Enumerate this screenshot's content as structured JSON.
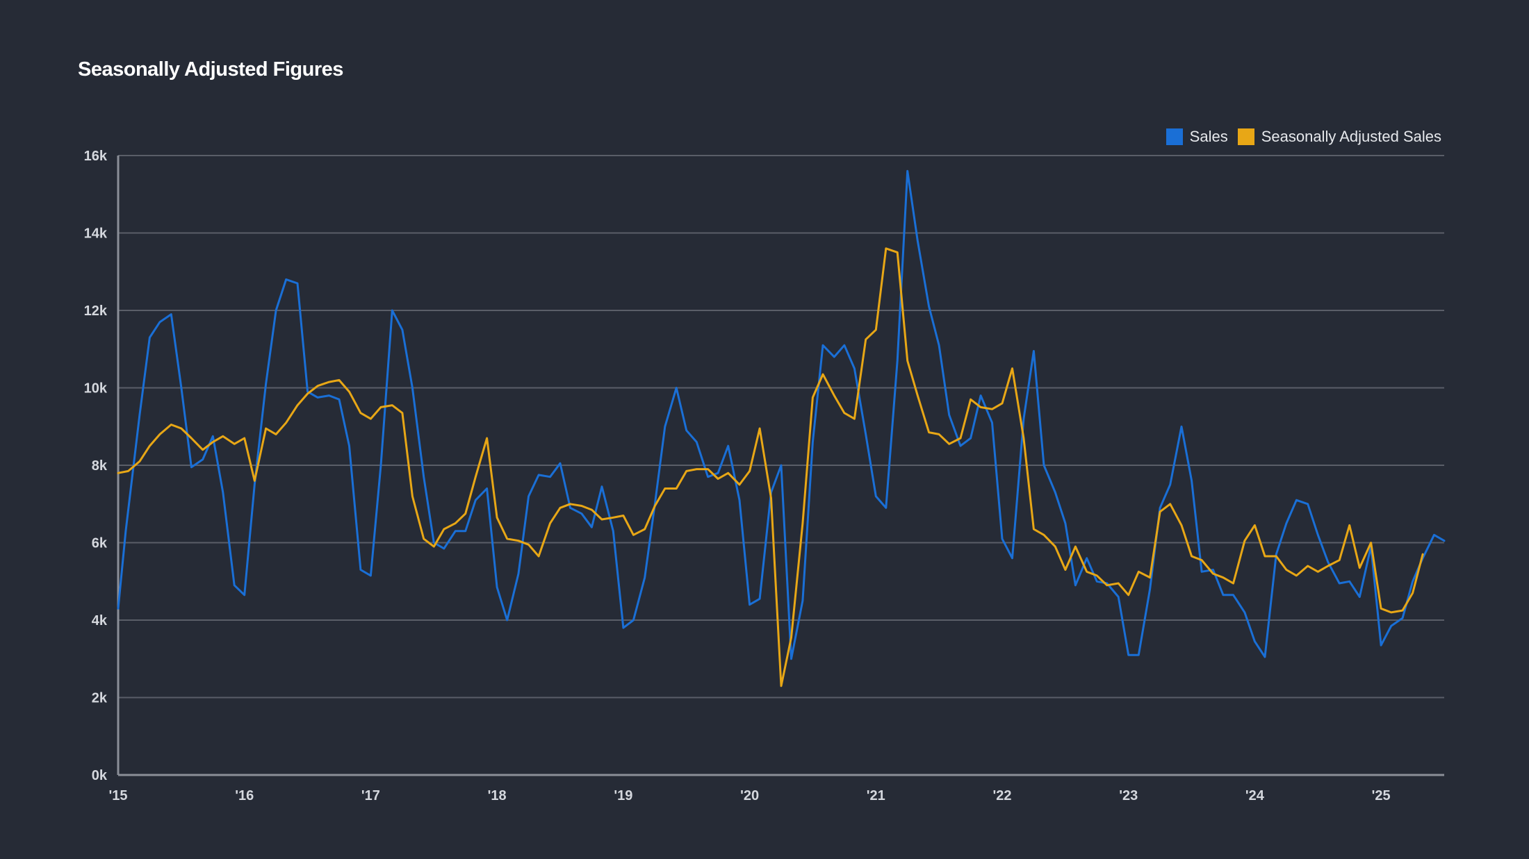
{
  "chart_data": {
    "type": "line",
    "title": "Seasonally Adjusted Figures",
    "ylim": [
      0,
      16000
    ],
    "x_range": [
      2015.0,
      2025.5
    ],
    "grid": true,
    "legend_placement": "top-right",
    "x_tick_labels": [
      {
        "value": 2015,
        "label": "'15"
      },
      {
        "value": 2016,
        "label": "'16"
      },
      {
        "value": 2017,
        "label": "'17"
      },
      {
        "value": 2018,
        "label": "'18"
      },
      {
        "value": 2019,
        "label": "'19"
      },
      {
        "value": 2020,
        "label": "'20"
      },
      {
        "value": 2021,
        "label": "'21"
      },
      {
        "value": 2022,
        "label": "'22"
      },
      {
        "value": 2023,
        "label": "'23"
      },
      {
        "value": 2024,
        "label": "'24"
      },
      {
        "value": 2025,
        "label": "'25"
      }
    ],
    "y_tick_labels": [
      {
        "value": 0,
        "label": "0k"
      },
      {
        "value": 2000,
        "label": "2k"
      },
      {
        "value": 4000,
        "label": "4k"
      },
      {
        "value": 6000,
        "label": "6k"
      },
      {
        "value": 8000,
        "label": "8k"
      },
      {
        "value": 10000,
        "label": "10k"
      },
      {
        "value": 12000,
        "label": "12k"
      },
      {
        "value": 14000,
        "label": "14k"
      },
      {
        "value": 16000,
        "label": "16k"
      }
    ],
    "series": [
      {
        "name": "Sales",
        "color": "#1a6fd6",
        "points": [
          [
            2015.0,
            4300
          ],
          [
            2015.06,
            6300
          ],
          [
            2015.17,
            9300
          ],
          [
            2015.25,
            11300
          ],
          [
            2015.33,
            11700
          ],
          [
            2015.42,
            11900
          ],
          [
            2015.5,
            10000
          ],
          [
            2015.58,
            7950
          ],
          [
            2015.67,
            8150
          ],
          [
            2015.75,
            8750
          ],
          [
            2015.83,
            7300
          ],
          [
            2015.92,
            4900
          ],
          [
            2016.0,
            4650
          ],
          [
            2016.08,
            7500
          ],
          [
            2016.17,
            10100
          ],
          [
            2016.25,
            12000
          ],
          [
            2016.33,
            12800
          ],
          [
            2016.42,
            12700
          ],
          [
            2016.5,
            9900
          ],
          [
            2016.58,
            9750
          ],
          [
            2016.67,
            9800
          ],
          [
            2016.75,
            9700
          ],
          [
            2016.83,
            8500
          ],
          [
            2016.92,
            5300
          ],
          [
            2017.0,
            5150
          ],
          [
            2017.08,
            8000
          ],
          [
            2017.17,
            12000
          ],
          [
            2017.25,
            11500
          ],
          [
            2017.33,
            10000
          ],
          [
            2017.42,
            7700
          ],
          [
            2017.5,
            6000
          ],
          [
            2017.58,
            5850
          ],
          [
            2017.67,
            6300
          ],
          [
            2017.75,
            6300
          ],
          [
            2017.83,
            7100
          ],
          [
            2017.92,
            7400
          ],
          [
            2018.0,
            4850
          ],
          [
            2018.08,
            4000
          ],
          [
            2018.17,
            5200
          ],
          [
            2018.25,
            7200
          ],
          [
            2018.33,
            7750
          ],
          [
            2018.42,
            7700
          ],
          [
            2018.5,
            8050
          ],
          [
            2018.58,
            6900
          ],
          [
            2018.67,
            6750
          ],
          [
            2018.75,
            6400
          ],
          [
            2018.83,
            7450
          ],
          [
            2018.92,
            6300
          ],
          [
            2019.0,
            3800
          ],
          [
            2019.08,
            4000
          ],
          [
            2019.17,
            5100
          ],
          [
            2019.25,
            7000
          ],
          [
            2019.33,
            9000
          ],
          [
            2019.42,
            10000
          ],
          [
            2019.5,
            8900
          ],
          [
            2019.58,
            8600
          ],
          [
            2019.67,
            7700
          ],
          [
            2019.75,
            7800
          ],
          [
            2019.83,
            8500
          ],
          [
            2019.92,
            7100
          ],
          [
            2020.0,
            4400
          ],
          [
            2020.08,
            4550
          ],
          [
            2020.17,
            7300
          ],
          [
            2020.25,
            8000
          ],
          [
            2020.33,
            3000
          ],
          [
            2020.42,
            4500
          ],
          [
            2020.5,
            8600
          ],
          [
            2020.58,
            11100
          ],
          [
            2020.67,
            10800
          ],
          [
            2020.75,
            11100
          ],
          [
            2020.83,
            10500
          ],
          [
            2020.92,
            8800
          ],
          [
            2021.0,
            7200
          ],
          [
            2021.08,
            6900
          ],
          [
            2021.17,
            10700
          ],
          [
            2021.25,
            15600
          ],
          [
            2021.33,
            13800
          ],
          [
            2021.42,
            12100
          ],
          [
            2021.5,
            11100
          ],
          [
            2021.58,
            9300
          ],
          [
            2021.67,
            8500
          ],
          [
            2021.75,
            8700
          ],
          [
            2021.83,
            9800
          ],
          [
            2021.92,
            9100
          ],
          [
            2022.0,
            6100
          ],
          [
            2022.08,
            5600
          ],
          [
            2022.17,
            9200
          ],
          [
            2022.25,
            10950
          ],
          [
            2022.33,
            8000
          ],
          [
            2022.42,
            7300
          ],
          [
            2022.5,
            6500
          ],
          [
            2022.58,
            4900
          ],
          [
            2022.67,
            5600
          ],
          [
            2022.75,
            5000
          ],
          [
            2022.83,
            4950
          ],
          [
            2022.92,
            4600
          ],
          [
            2023.0,
            3100
          ],
          [
            2023.08,
            3100
          ],
          [
            2023.17,
            4800
          ],
          [
            2023.25,
            6900
          ],
          [
            2023.33,
            7500
          ],
          [
            2023.42,
            9000
          ],
          [
            2023.5,
            7600
          ],
          [
            2023.58,
            5250
          ],
          [
            2023.67,
            5300
          ],
          [
            2023.75,
            4650
          ],
          [
            2023.83,
            4650
          ],
          [
            2023.92,
            4200
          ],
          [
            2024.0,
            3450
          ],
          [
            2024.08,
            3050
          ],
          [
            2024.17,
            5700
          ],
          [
            2024.25,
            6500
          ],
          [
            2024.33,
            7100
          ],
          [
            2024.42,
            7000
          ],
          [
            2024.5,
            6200
          ],
          [
            2024.58,
            5500
          ],
          [
            2024.67,
            4950
          ],
          [
            2024.75,
            5000
          ],
          [
            2024.83,
            4600
          ],
          [
            2024.92,
            5900
          ],
          [
            2025.0,
            3350
          ],
          [
            2025.08,
            3850
          ],
          [
            2025.17,
            4050
          ],
          [
            2025.25,
            5000
          ],
          [
            2025.33,
            5600
          ],
          [
            2025.42,
            6200
          ],
          [
            2025.5,
            6050
          ]
        ]
      },
      {
        "name": "Seasonally Adjusted Sales",
        "color": "#e8a716",
        "points": [
          [
            2015.0,
            7800
          ],
          [
            2015.08,
            7850
          ],
          [
            2015.17,
            8100
          ],
          [
            2015.25,
            8500
          ],
          [
            2015.33,
            8800
          ],
          [
            2015.42,
            9050
          ],
          [
            2015.5,
            8950
          ],
          [
            2015.58,
            8700
          ],
          [
            2015.67,
            8400
          ],
          [
            2015.75,
            8600
          ],
          [
            2015.83,
            8750
          ],
          [
            2015.92,
            8550
          ],
          [
            2016.0,
            8700
          ],
          [
            2016.08,
            7600
          ],
          [
            2016.17,
            8950
          ],
          [
            2016.25,
            8800
          ],
          [
            2016.33,
            9100
          ],
          [
            2016.42,
            9550
          ],
          [
            2016.5,
            9850
          ],
          [
            2016.58,
            10050
          ],
          [
            2016.67,
            10150
          ],
          [
            2016.75,
            10200
          ],
          [
            2016.83,
            9900
          ],
          [
            2016.92,
            9350
          ],
          [
            2017.0,
            9200
          ],
          [
            2017.08,
            9500
          ],
          [
            2017.17,
            9550
          ],
          [
            2017.25,
            9350
          ],
          [
            2017.33,
            7200
          ],
          [
            2017.42,
            6100
          ],
          [
            2017.5,
            5900
          ],
          [
            2017.58,
            6350
          ],
          [
            2017.67,
            6500
          ],
          [
            2017.75,
            6750
          ],
          [
            2017.83,
            7700
          ],
          [
            2017.92,
            8700
          ],
          [
            2018.0,
            6650
          ],
          [
            2018.08,
            6100
          ],
          [
            2018.17,
            6050
          ],
          [
            2018.25,
            5950
          ],
          [
            2018.33,
            5650
          ],
          [
            2018.42,
            6500
          ],
          [
            2018.5,
            6900
          ],
          [
            2018.58,
            7000
          ],
          [
            2018.67,
            6950
          ],
          [
            2018.75,
            6850
          ],
          [
            2018.83,
            6600
          ],
          [
            2018.92,
            6650
          ],
          [
            2019.0,
            6700
          ],
          [
            2019.08,
            6200
          ],
          [
            2019.17,
            6350
          ],
          [
            2019.25,
            6950
          ],
          [
            2019.33,
            7400
          ],
          [
            2019.42,
            7400
          ],
          [
            2019.5,
            7850
          ],
          [
            2019.58,
            7900
          ],
          [
            2019.67,
            7900
          ],
          [
            2019.75,
            7650
          ],
          [
            2019.83,
            7800
          ],
          [
            2019.92,
            7500
          ],
          [
            2020.0,
            7850
          ],
          [
            2020.08,
            8950
          ],
          [
            2020.17,
            7150
          ],
          [
            2020.25,
            2300
          ],
          [
            2020.33,
            3550
          ],
          [
            2020.42,
            6500
          ],
          [
            2020.5,
            9750
          ],
          [
            2020.58,
            10350
          ],
          [
            2020.67,
            9800
          ],
          [
            2020.75,
            9350
          ],
          [
            2020.83,
            9200
          ],
          [
            2020.92,
            11250
          ],
          [
            2021.0,
            11500
          ],
          [
            2021.08,
            13600
          ],
          [
            2021.17,
            13500
          ],
          [
            2021.25,
            10700
          ],
          [
            2021.33,
            9800
          ],
          [
            2021.42,
            8850
          ],
          [
            2021.5,
            8800
          ],
          [
            2021.58,
            8550
          ],
          [
            2021.67,
            8700
          ],
          [
            2021.75,
            9700
          ],
          [
            2021.83,
            9500
          ],
          [
            2021.92,
            9450
          ],
          [
            2022.0,
            9600
          ],
          [
            2022.08,
            10500
          ],
          [
            2022.17,
            8700
          ],
          [
            2022.25,
            6350
          ],
          [
            2022.33,
            6200
          ],
          [
            2022.42,
            5900
          ],
          [
            2022.5,
            5300
          ],
          [
            2022.58,
            5900
          ],
          [
            2022.67,
            5250
          ],
          [
            2022.75,
            5150
          ],
          [
            2022.83,
            4900
          ],
          [
            2022.92,
            4950
          ],
          [
            2023.0,
            4650
          ],
          [
            2023.08,
            5250
          ],
          [
            2023.17,
            5100
          ],
          [
            2023.25,
            6800
          ],
          [
            2023.33,
            7000
          ],
          [
            2023.42,
            6450
          ],
          [
            2023.5,
            5650
          ],
          [
            2023.58,
            5550
          ],
          [
            2023.67,
            5200
          ],
          [
            2023.75,
            5100
          ],
          [
            2023.83,
            4950
          ],
          [
            2023.92,
            6050
          ],
          [
            2024.0,
            6450
          ],
          [
            2024.08,
            5650
          ],
          [
            2024.17,
            5650
          ],
          [
            2024.25,
            5300
          ],
          [
            2024.33,
            5150
          ],
          [
            2024.42,
            5400
          ],
          [
            2024.5,
            5250
          ],
          [
            2024.58,
            5400
          ],
          [
            2024.67,
            5550
          ],
          [
            2024.75,
            6450
          ],
          [
            2024.83,
            5350
          ],
          [
            2024.92,
            6000
          ],
          [
            2025.0,
            4300
          ],
          [
            2025.08,
            4200
          ],
          [
            2025.17,
            4250
          ],
          [
            2025.25,
            4700
          ],
          [
            2025.33,
            5700
          ]
        ]
      }
    ]
  }
}
